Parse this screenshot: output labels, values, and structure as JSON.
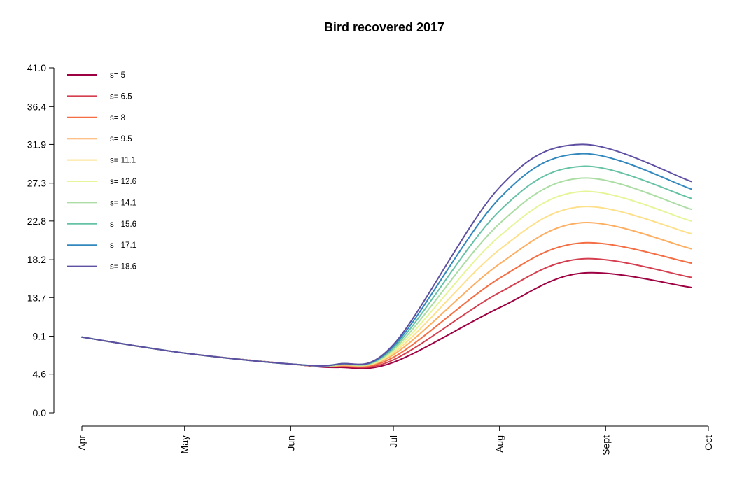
{
  "chart_data": {
    "type": "line",
    "title": "Bird recovered 2017",
    "xlabel": "",
    "ylabel": "",
    "x_axis": {
      "type": "date",
      "ticks": [
        {
          "label": "Apr",
          "date": "2017-04-01"
        },
        {
          "label": "May",
          "date": "2017-05-01"
        },
        {
          "label": "Jun",
          "date": "2017-06-01"
        },
        {
          "label": "Jul",
          "date": "2017-07-01"
        },
        {
          "label": "Aug",
          "date": "2017-08-01"
        },
        {
          "label": "Sept",
          "date": "2017-09-01"
        },
        {
          "label": "Oct",
          "date": "2017-10-01"
        }
      ],
      "range": [
        "2017-04-01",
        "2017-10-01"
      ]
    },
    "y_axis": {
      "ticks": [
        "0.0",
        "4.6",
        "9.1",
        "13.7",
        "18.2",
        "22.8",
        "27.3",
        "31.9",
        "36.4",
        "41.0"
      ],
      "range": [
        0,
        41.0
      ]
    },
    "grid": false,
    "legend_position": "top-left",
    "x": [
      "2017-04-01",
      "2017-05-01",
      "2017-06-01",
      "2017-06-15",
      "2017-07-01",
      "2017-08-01",
      "2017-08-25",
      "2017-09-26"
    ],
    "series": [
      {
        "name": "s= 5",
        "color": "#9E0142",
        "values": [
          9.0,
          7.1,
          5.8,
          5.4,
          6.0,
          12.5,
          16.6,
          14.9
        ]
      },
      {
        "name": "s= 6.5",
        "color": "#D53E4F",
        "values": [
          9.0,
          7.1,
          5.8,
          5.5,
          6.3,
          14.3,
          18.3,
          16.1
        ]
      },
      {
        "name": "s= 8",
        "color": "#F46D43",
        "values": [
          9.0,
          7.1,
          5.8,
          5.6,
          6.6,
          16.0,
          20.2,
          17.8
        ]
      },
      {
        "name": "s= 9.5",
        "color": "#FDAE61",
        "values": [
          9.0,
          7.1,
          5.8,
          5.6,
          6.9,
          17.7,
          22.6,
          19.5
        ]
      },
      {
        "name": "s= 11.1",
        "color": "#FEE08B",
        "values": [
          9.0,
          7.1,
          5.8,
          5.7,
          7.1,
          19.4,
          24.5,
          21.3
        ]
      },
      {
        "name": "s= 12.6",
        "color": "#E6F598",
        "values": [
          9.0,
          7.1,
          5.8,
          5.7,
          7.3,
          21.0,
          26.3,
          22.8
        ]
      },
      {
        "name": "s= 14.1",
        "color": "#ABDDA4",
        "values": [
          9.0,
          7.1,
          5.8,
          5.7,
          7.5,
          22.5,
          27.9,
          24.2
        ]
      },
      {
        "name": "s= 15.6",
        "color": "#66C2A5",
        "values": [
          9.0,
          7.1,
          5.8,
          5.8,
          7.7,
          24.0,
          29.3,
          25.5
        ]
      },
      {
        "name": "s= 17.1",
        "color": "#3288BD",
        "values": [
          9.0,
          7.1,
          5.8,
          5.8,
          7.9,
          25.5,
          30.8,
          26.6
        ]
      },
      {
        "name": "s= 18.6",
        "color": "#5E4FA2",
        "values": [
          9.0,
          7.1,
          5.8,
          5.8,
          8.1,
          26.8,
          31.9,
          27.5
        ]
      }
    ]
  }
}
